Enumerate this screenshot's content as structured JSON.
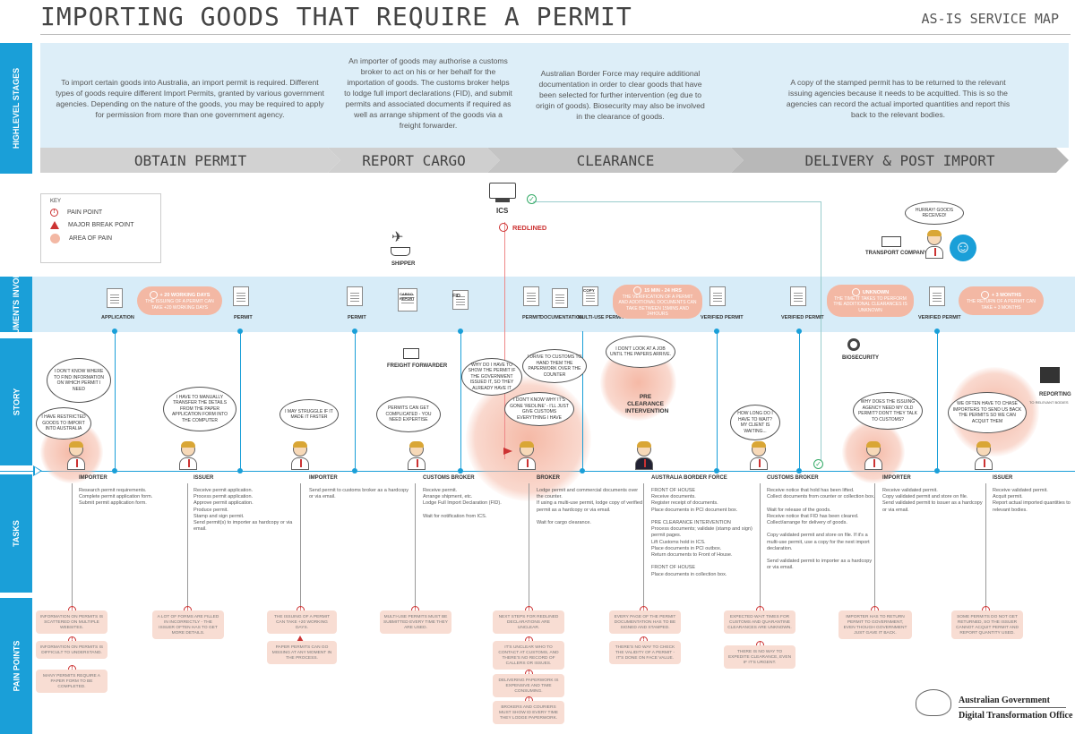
{
  "header": {
    "title": "IMPORTING GOODS THAT REQUIRE A PERMIT",
    "subtitle": "AS-IS SERVICE MAP"
  },
  "lanes": {
    "stages": "HIGHLEVEL STAGES",
    "documents": "DOCUMENTS INVOLVED",
    "story": "STORY",
    "tasks": "TASKS",
    "pain": "PAIN POINTS"
  },
  "stages": [
    {
      "label": "OBTAIN PERMIT",
      "text": "To import certain goods into Australia, an import permit is required. Different types of goods require different Import Permits, granted by various government agencies. Depending on the nature of the goods, you may be required to apply for permission from more than one government agency."
    },
    {
      "label": "REPORT CARGO",
      "text": "An importer of goods may authorise a customs broker to act on his or her behalf for the importation of goods. The customs broker helps to lodge full import declarations (FID), and submit permits and associated documents if required as well as arrange shipment of the goods via a freight forwarder."
    },
    {
      "label": "CLEARANCE",
      "text": "Australian Border Force may require additional documentation in order to clear goods that have been selected for further intervention (eg due to origin of goods). Biosecurity may also be involved in the clearance of goods."
    },
    {
      "label": "DELIVERY & POST IMPORT",
      "text": "A copy of the stamped permit has to be returned to the relevant issuing agencies because it needs to be acquitted. This is so the agencies can record the actual imported quantities and report this back to the relevant bodies."
    }
  ],
  "key": {
    "title": "KEY",
    "pain": "PAIN POINT",
    "break": "MAJOR BREAK POINT",
    "area": "AREA OF PAIN"
  },
  "documents": [
    "APPLICATION",
    "PERMIT",
    "PERMIT",
    "FID",
    "PERMIT",
    "DOCUMENTATION",
    "MULTI-USE PERMIT",
    "VERIFIED PERMIT",
    "VERIFIED PERMIT",
    "VERIFIED PERMIT"
  ],
  "doc_misc": {
    "cargo": "CARGO REPORT",
    "copy": "COPY"
  },
  "pain_ovals": [
    {
      "head": "+ 20 WORKING DAYS",
      "text": "THE ISSUING OF A PERMIT CAN TAKE +20 WORKING DAYS"
    },
    {
      "head": "15 MIN - 24 HRS",
      "text": "THE VERIFICATION OF A PERMIT AND ADDITIONAL DOCUMENTS CAN TAKE BETWEEN 15MINS AND 24HOURS"
    },
    {
      "head": "UNKNOWN",
      "text": "THE TIME IT TAKES TO PERFORM THE ADDITIONAL CLEARANCES IS UNKNOWN"
    },
    {
      "head": "+ 3 MONTHS",
      "text": "THE RETURN OF A PERMIT CAN TAKE + 3 MONTHS"
    }
  ],
  "systems": {
    "ics": "ICS",
    "redlined": "REDLINED",
    "shipper": "SHIPPER",
    "freight": "FREIGHT FORWARDER",
    "transport": "TRANSPORT COMPANY",
    "biosecurity": "BIOSECURITY",
    "reporting": "REPORTING",
    "reporting_sub": "TO RELEVANT BODIES",
    "preclear": "PRE CLEARANCE INTERVENTION"
  },
  "bubbles": [
    "I DON'T KNOW WHERE TO FIND INFORMATION ON WHICH PERMIT I NEED",
    "I HAVE RESTRICTED GOODS TO IMPORT INTO AUSTRALIA",
    "I HAVE TO MANUALLY TRANSFER THE DETAILS FROM THE PAPER APPLICATION FORM INTO THE COMPUTER",
    "I MAY STRUGGLE IF IT MADE IT FASTER",
    "PERMITS CAN GET COMPLICATED - YOU NEED EXPERTISE",
    "WHY DO I HAVE TO SHOW THE PERMIT IF THE GOVERNMENT ISSUED IT, SO THEY ALREADY HAVE IT",
    "I DON'T KNOW WHY IT'S GONE 'REDLINE' - I'LL JUST GIVE CUSTOMS EVERYTHING I HAVE",
    "I DRIVE TO CUSTOMS TO HAND THEM THE PAPERWORK OVER THE COUNTER",
    "I DON'T LOOK AT A JOB UNTIL THE PAPERS ARRIVE.",
    "HOW LONG DO I HAVE TO WAIT? MY CLIENT IS WAITING...",
    "WHY DOES THE ISSUING AGENCY NEED MY OLD PERMIT? DON'T THEY TALK TO CUSTOMS?",
    "WE OFTEN HAVE TO CHASE IMPORTERS TO SEND US BACK THE PERMITS SO WE CAN ACQUIT THEM",
    "HURRAY! GOODS RECEIVED!"
  ],
  "actors": [
    {
      "name": "IMPORTER",
      "tasks": "Research permit requirements.\nComplete permit application form.\nSubmit permit application form."
    },
    {
      "name": "ISSUER",
      "tasks": "Receive permit application.\nProcess permit application.\nApprove permit application.\nProduce permit.\nStamp and sign permit.\nSend permit(s) to importer as hardcopy or via email."
    },
    {
      "name": "IMPORTER",
      "tasks": "Send permit to customs broker as a hardcopy or via email."
    },
    {
      "name": "CUSTOMS BROKER",
      "tasks": "Receive permit.\nArrange shipment, etc.\nLodge Full Import Declaration (FID).\n\nWait for notification from ICS."
    },
    {
      "name": "BROKER",
      "tasks": "Lodge permit and commercial documents over the counter.\nIf using a multi-use permit, lodge copy of verified permit as a hardcopy or via email.\n\nWait for cargo clearance."
    },
    {
      "name": "AUSTRALIA BORDER FORCE",
      "tasks": "FRONT OF HOUSE\nReceive documents.\nRegister receipt of documents.\nPlace documents in PCI document box.\n\nPRE CLEARANCE INTERVENTION\nProcess documents; validate (stamp and sign) permit pages.\nLift Customs hold in ICS.\nPlace documents in PCI outbox.\nReturn documents to Front of House.\n\nFRONT OF HOUSE\nPlace documents in collection box."
    },
    {
      "name": "CUSTOMS BROKER",
      "tasks": "Receive notice that hold has been lifted.\nCollect documents from counter or collection box.\n\nWait for release of the goods.\nReceive notice that FID has been cleared.\nCollect/arrange for delivery of goods.\n\nCopy validated permit and store on file. If it's a multi-use permit, use a copy for the next import declaration.\n\nSend validated permit to importer as a hardcopy or via email."
    },
    {
      "name": "IMPORTER",
      "tasks": "Receive validated permit.\nCopy validated permit and store on file.\nSend validated permit to issuer as a hardcopy or via email."
    },
    {
      "name": "ISSUER",
      "tasks": "Receive validated permit.\nAcquit permit.\nReport actual imported quantities to relevant bodies."
    }
  ],
  "pain_points": [
    [
      "INFORMATION ON PERMITS IS SCATTERED ON MULTIPLE WEBSITES.",
      "INFORMATION ON PERMITS IS DIFFICULT TO UNDERSTAND.",
      "MANY PERMITS REQUIRE A PAPER FORM TO BE COMPLETED."
    ],
    [
      "A LOT OF FORMS ARE FILLED IN INCORRECTLY - THE ISSUER OFTEN HAS TO GET MORE DETAILS."
    ],
    [
      "THE ISSUING OF A PERMIT CAN TAKE +20 WORKING DAYS.",
      "PAPER PERMITS CAN GO MISSING AT ANY MOMENT IN THE PROCESS."
    ],
    [
      "MULTI-USE PERMITS MUST BE SUBMITTED EVERY TIME THEY ARE USED."
    ],
    [
      "NEXT STEPS FOR REDLINED DECLARATIONS ARE UNCLEAR.",
      "IT'S UNCLEAR WHO TO CONTACT AT CUSTOMS, AND THERE'S NO RECORD OF CALLERS OR ISSUES.",
      "DELIVERING PAPERWORK IS EXPENSIVE AND TIME CONSUMING.",
      "BROKERS AND COURIERS MUST SHOW ID EVERY TIME THEY LODGE PAPERWORK."
    ],
    [
      "EVERY PAGE OF THE PERMIT DOCUMENTATION HAS TO BE SIGNED AND STAMPED.",
      "THERE'S NO WAY TO CHECK THE VALIDITY OF A PERMIT - IT'S DONE ON FACE VALUE."
    ],
    [
      "EXPECTED WAIT TIMES FOR CUSTOMS AND QUARANTINE CLEARANCES ARE UNKNOWN.",
      "THERE IS NO WAY TO EXPEDITE CLEARANCE, EVEN IF IT'S URGENT."
    ],
    [
      "IMPORTER HAS TO RETURN PERMIT TO GOVERNMENT, EVEN THOUGH GOVERNMENT JUST GAVE IT BACK."
    ],
    [
      "SOME PERMITS DO NOT GET RETURNED, SO THE ISSUER CANNOT ACQUIT PERMIT AND REPORT QUANTITY USED."
    ]
  ],
  "footer": {
    "gov": "Australian Government",
    "office": "Digital Transformation Office"
  },
  "colors": {
    "accent": "#1a9fd8",
    "pain": "#f3b8a4",
    "red": "#cc3333"
  }
}
